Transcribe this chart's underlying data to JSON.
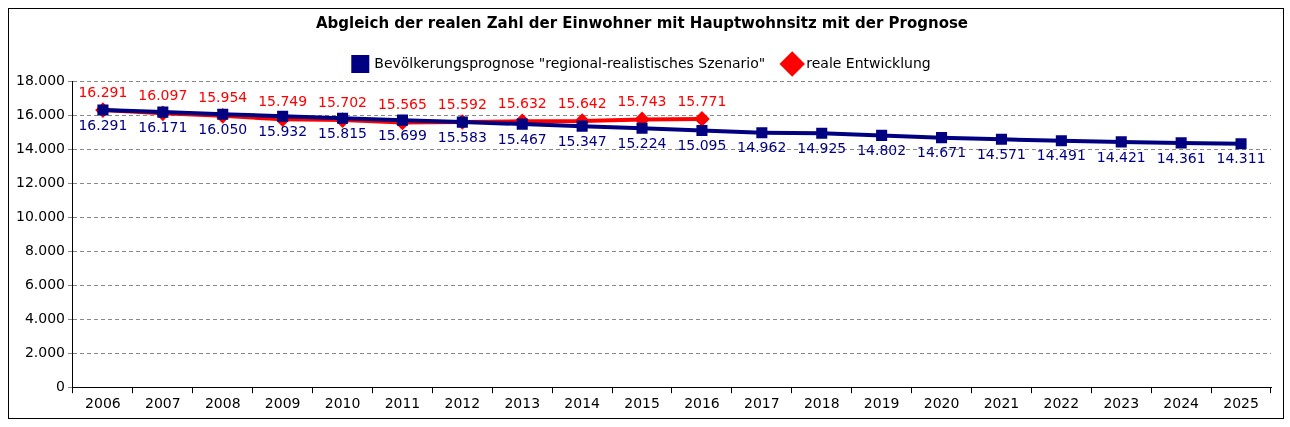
{
  "chart_data": {
    "type": "line",
    "title": "Abgleich der realen Zahl der Einwohner mit Hauptwohnsitz mit der Prognose",
    "categories": [
      "2006",
      "2007",
      "2008",
      "2009",
      "2010",
      "2011",
      "2012",
      "2013",
      "2014",
      "2015",
      "2016",
      "2017",
      "2018",
      "2019",
      "2020",
      "2021",
      "2022",
      "2023",
      "2024",
      "2025"
    ],
    "series": [
      {
        "name": "Bevölkerungsprognose \"regional-realistisches Szenario\"",
        "color": "#000080",
        "marker": "square",
        "values": [
          16291,
          16171,
          16050,
          15932,
          15815,
          15699,
          15583,
          15467,
          15347,
          15224,
          15095,
          14962,
          14925,
          14802,
          14671,
          14571,
          14491,
          14421,
          14361,
          14311
        ],
        "value_labels": [
          "16.291",
          "16.171",
          "16.050",
          "15.932",
          "15.815",
          "15.699",
          "15.583",
          "15.467",
          "15.347",
          "15.224",
          "15.095",
          "14.962",
          "14.925",
          "14.802",
          "14.671",
          "14.571",
          "14.491",
          "14.421",
          "14.361",
          "14.311"
        ]
      },
      {
        "name": "reale Entwicklung",
        "color": "#ff0000",
        "marker": "diamond",
        "values": [
          16291,
          16097,
          15954,
          15749,
          15702,
          15565,
          15592,
          15632,
          15642,
          15743,
          15771,
          null,
          null,
          null,
          null,
          null,
          null,
          null,
          null,
          null
        ],
        "value_labels": [
          "16.291",
          "16.097",
          "15.954",
          "15.749",
          "15.702",
          "15.565",
          "15.592",
          "15.632",
          "15.642",
          "15.743",
          "15.771",
          null,
          null,
          null,
          null,
          null,
          null,
          null,
          null,
          null
        ]
      }
    ],
    "ylim": [
      0,
      18000
    ],
    "yticks": [
      {
        "value": 0,
        "label": "0"
      },
      {
        "value": 2000,
        "label": "2.000"
      },
      {
        "value": 4000,
        "label": "4.000"
      },
      {
        "value": 6000,
        "label": "6.000"
      },
      {
        "value": 8000,
        "label": "8.000"
      },
      {
        "value": 10000,
        "label": "10.000"
      },
      {
        "value": 12000,
        "label": "12.000"
      },
      {
        "value": 14000,
        "label": "14.000"
      },
      {
        "value": 16000,
        "label": "16.000"
      },
      {
        "value": 18000,
        "label": "18.000"
      }
    ],
    "grid": "y",
    "legend": "top",
    "line_style": "solid"
  }
}
